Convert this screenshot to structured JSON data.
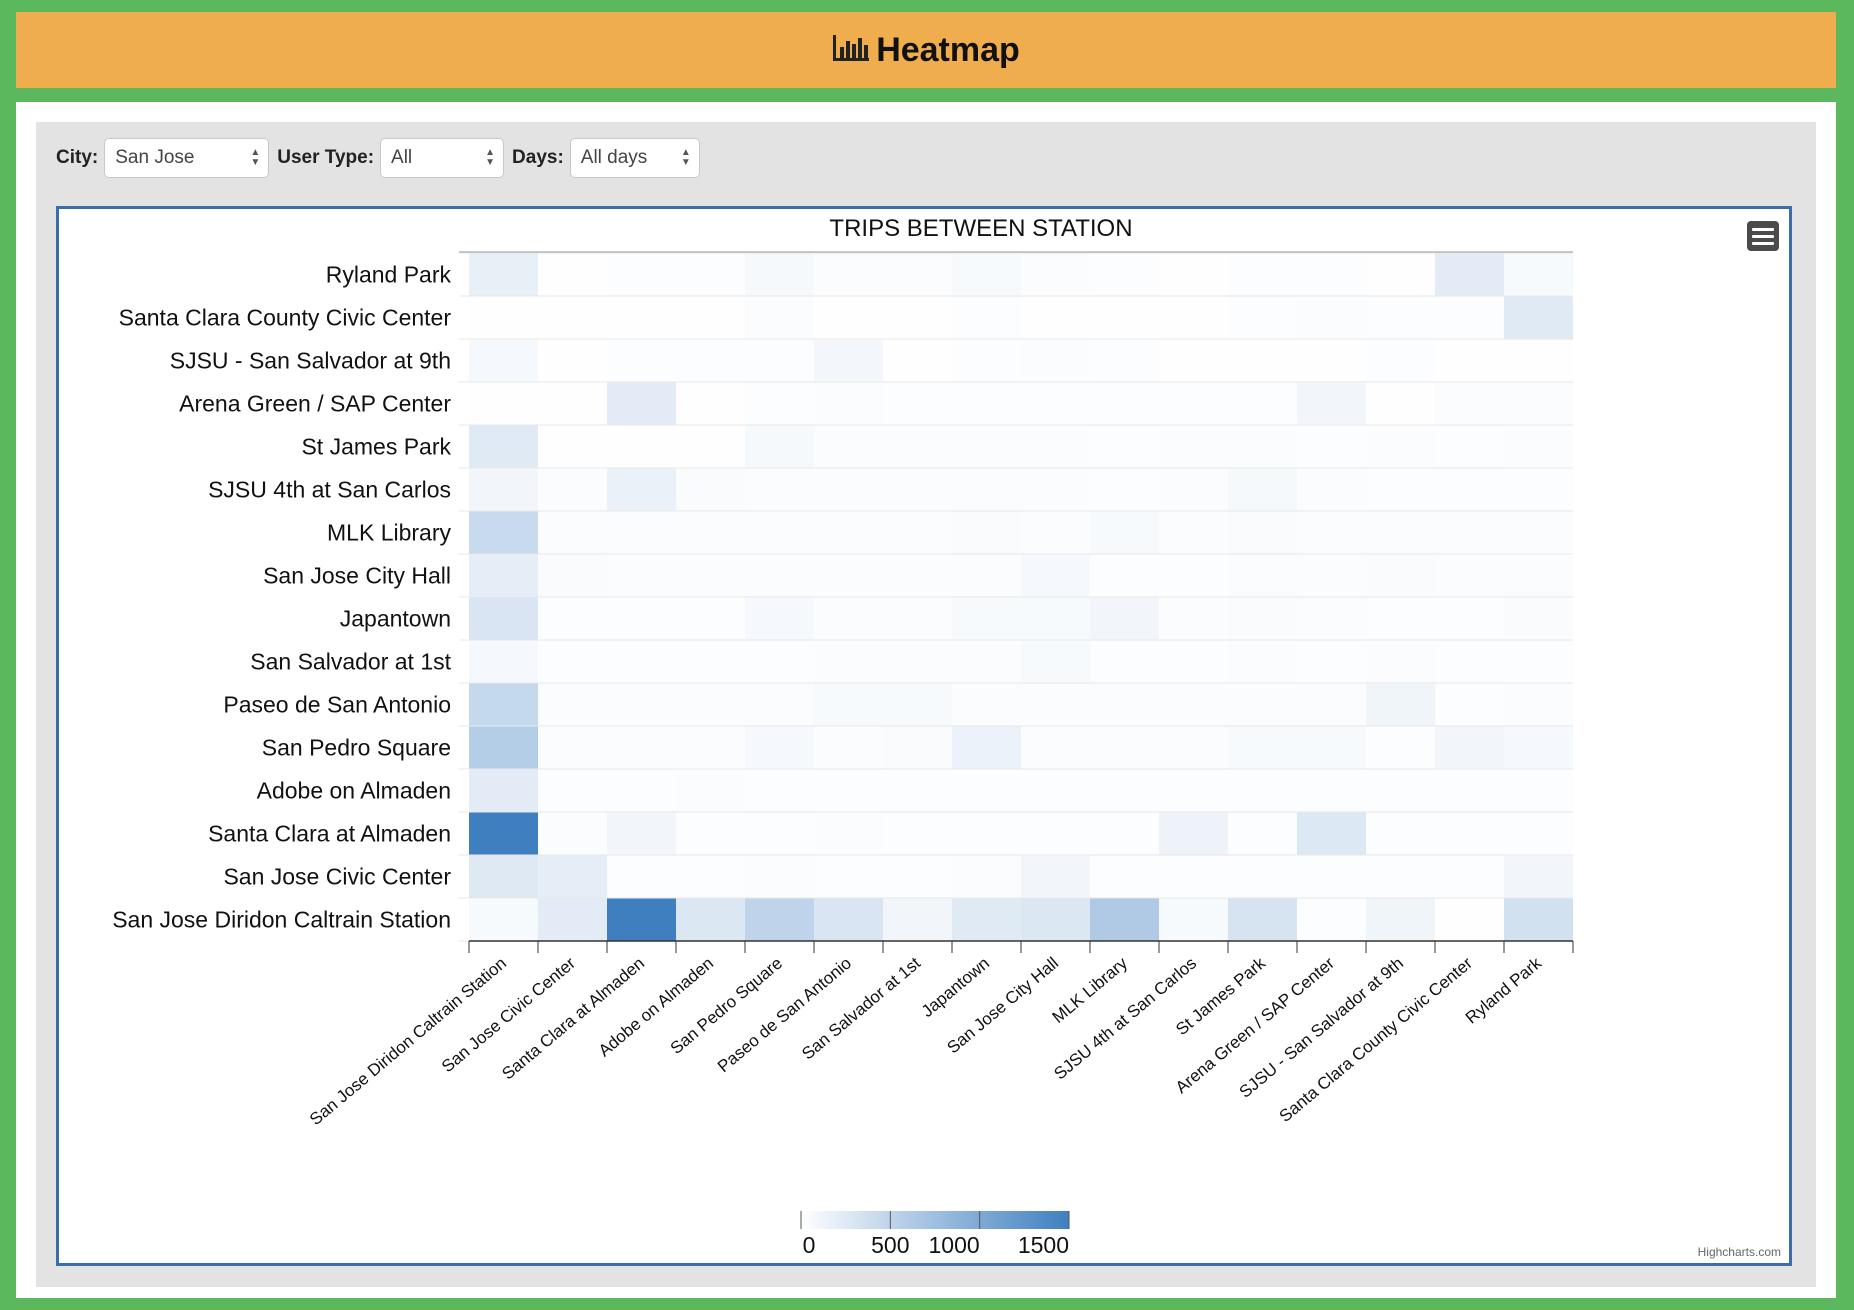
{
  "header": {
    "title": "Heatmap",
    "icon": "bar-chart-icon"
  },
  "filters": {
    "city": {
      "label": "City:",
      "value": "San Jose"
    },
    "user_type": {
      "label": "User Type:",
      "value": "All"
    },
    "days": {
      "label": "Days:",
      "value": "All days"
    }
  },
  "credits": "Highcharts.com",
  "chart_data": {
    "type": "heatmap",
    "title": "TRIPS BETWEEN STATION",
    "x_categories": [
      "San Jose Diridon Caltrain Station",
      "San Jose Civic Center",
      "Santa Clara at Almaden",
      "Adobe on Almaden",
      "San Pedro Square",
      "Paseo de San Antonio",
      "San Salvador at 1st",
      "Japantown",
      "San Jose City Hall",
      "MLK Library",
      "SJSU 4th at San Carlos",
      "St James Park",
      "Arena Green / SAP Center",
      "SJSU - San Salvador at 9th",
      "Santa Clara County Civic Center",
      "Ryland Park"
    ],
    "y_categories": [
      "San Jose Diridon Caltrain Station",
      "San Jose Civic Center",
      "Santa Clara at Almaden",
      "Adobe on Almaden",
      "San Pedro Square",
      "Paseo de San Antonio",
      "San Salvador at 1st",
      "Japantown",
      "San Jose City Hall",
      "MLK Library",
      "SJSU 4th at San Carlos",
      "St James Park",
      "Arena Green / SAP Center",
      "SJSU - San Salvador at 9th",
      "Santa Clara County Civic Center",
      "Ryland Park"
    ],
    "y_order": "first category at bottom",
    "values": [
      [
        60,
        220,
        1520,
        280,
        500,
        300,
        100,
        250,
        280,
        620,
        60,
        320,
        20,
        120,
        10,
        350
      ],
      [
        260,
        200,
        20,
        20,
        40,
        20,
        20,
        40,
        100,
        20,
        20,
        20,
        20,
        20,
        20,
        100
      ],
      [
        1560,
        40,
        100,
        20,
        20,
        40,
        20,
        20,
        20,
        20,
        140,
        20,
        270,
        20,
        20,
        20
      ],
      [
        220,
        20,
        20,
        30,
        20,
        20,
        20,
        20,
        20,
        20,
        20,
        20,
        20,
        20,
        20,
        20
      ],
      [
        580,
        40,
        30,
        40,
        80,
        40,
        50,
        150,
        40,
        30,
        40,
        60,
        60,
        20,
        100,
        80
      ],
      [
        450,
        40,
        40,
        40,
        40,
        60,
        60,
        40,
        40,
        30,
        30,
        30,
        40,
        120,
        20,
        30
      ],
      [
        80,
        20,
        20,
        20,
        20,
        40,
        40,
        40,
        60,
        20,
        20,
        40,
        20,
        40,
        20,
        20
      ],
      [
        300,
        20,
        20,
        20,
        80,
        40,
        40,
        60,
        60,
        100,
        30,
        50,
        30,
        20,
        20,
        50
      ],
      [
        200,
        50,
        30,
        30,
        30,
        30,
        40,
        40,
        80,
        20,
        20,
        40,
        30,
        50,
        30,
        30
      ],
      [
        430,
        30,
        30,
        30,
        40,
        30,
        40,
        50,
        30,
        60,
        40,
        50,
        30,
        30,
        30,
        30
      ],
      [
        100,
        30,
        160,
        50,
        30,
        30,
        30,
        30,
        30,
        20,
        30,
        70,
        30,
        20,
        20,
        20
      ],
      [
        250,
        10,
        10,
        10,
        70,
        30,
        30,
        30,
        30,
        20,
        40,
        40,
        20,
        30,
        20,
        30
      ],
      [
        10,
        10,
        220,
        10,
        20,
        30,
        20,
        20,
        20,
        20,
        20,
        20,
        100,
        10,
        40,
        30
      ],
      [
        80,
        10,
        20,
        20,
        20,
        90,
        10,
        20,
        40,
        20,
        10,
        10,
        10,
        20,
        10,
        10
      ],
      [
        10,
        10,
        10,
        10,
        40,
        10,
        10,
        20,
        10,
        10,
        10,
        20,
        30,
        20,
        20,
        250
      ],
      [
        180,
        10,
        20,
        20,
        70,
        40,
        30,
        60,
        30,
        20,
        10,
        20,
        20,
        10,
        220,
        60
      ]
    ],
    "color_min": "#ffffff",
    "color_max": "#3f7fc0",
    "color_axis": {
      "min": 0,
      "max": 1500,
      "ticks": [
        "0",
        "500",
        "1000",
        "1500"
      ]
    },
    "legend_position": "bottom-center"
  }
}
